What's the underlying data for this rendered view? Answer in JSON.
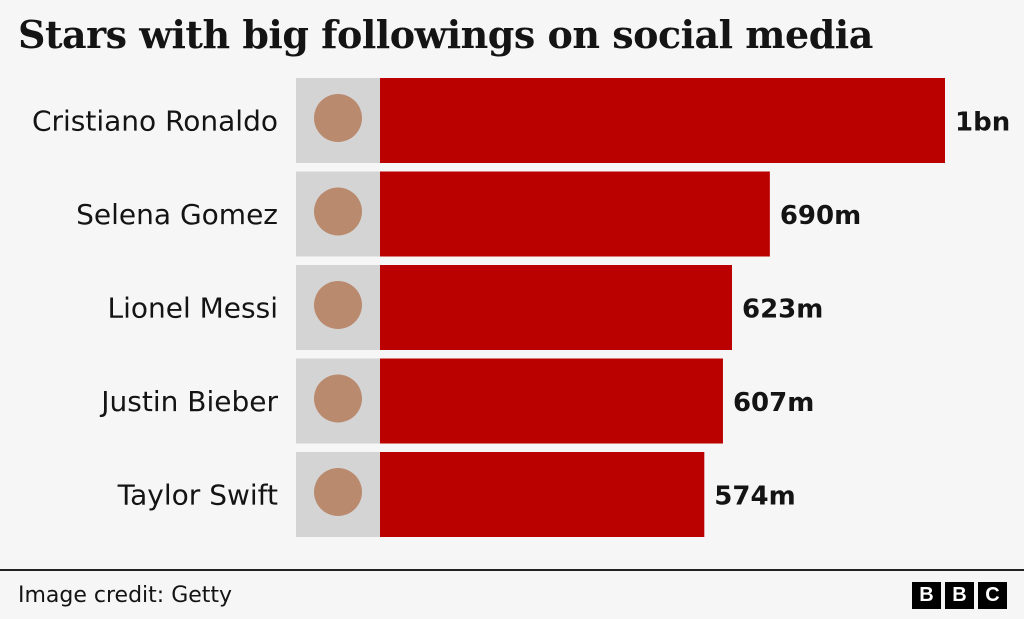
{
  "chart_data": {
    "type": "bar",
    "orientation": "horizontal",
    "title": "Stars with big followings on social media",
    "categories": [
      "Cristiano Ronaldo",
      "Selena Gomez",
      "Lionel Messi",
      "Justin Bieber",
      "Taylor Swift"
    ],
    "values": [
      1000,
      690,
      623,
      607,
      574
    ],
    "value_labels": [
      "1bn",
      "690m",
      "623m",
      "607m",
      "574m"
    ],
    "unit": "followers (millions)",
    "xlim": [
      0,
      1000
    ],
    "grid": false,
    "bar_color": "#bb0000"
  },
  "footer": {
    "credit": "Image credit: Getty",
    "logo": [
      "B",
      "B",
      "C"
    ]
  }
}
